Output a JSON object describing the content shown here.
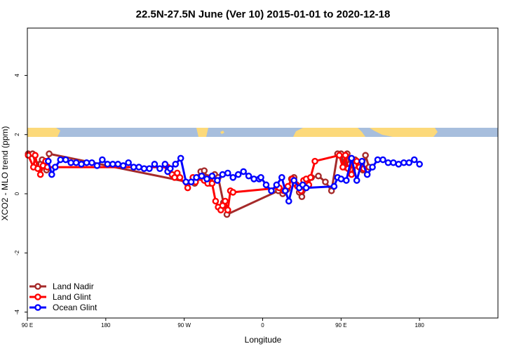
{
  "chart_data": {
    "type": "line",
    "title": "22.5N-27.5N June (Ver 10)   2015-01-01 to 2020-12-18",
    "xlabel": "Longitude",
    "ylabel": "XCO2 - MLO trend (ppm)",
    "xlim": [
      -90,
      180
    ],
    "ylim": [
      -4.2,
      5.6
    ],
    "x_ticks": [
      {
        "value": -90,
        "label": "90 E"
      },
      {
        "value": -45,
        "label": "180"
      },
      {
        "value": 0,
        "label": "90 W"
      },
      {
        "value": 45,
        "label": "0"
      },
      {
        "value": 90,
        "label": "90 E"
      },
      {
        "value": 135,
        "label": "180"
      }
    ],
    "y_ticks": [
      -4,
      -2,
      0,
      2,
      4
    ],
    "grid": false,
    "legend_position": "bottom-left",
    "colors": {
      "land_nadir": "#a52a2a",
      "land_glint": "#ff0000",
      "ocean_glint": "#0000ff",
      "map_land": "#fcd97a",
      "map_ocean": "#a7bedd"
    },
    "series": [
      {
        "name": "Land Nadir",
        "color": "#a52a2a",
        "x": [
          -89.5,
          -87.0,
          -85.0,
          -81.5,
          -79.0,
          -77.5,
          6.0,
          9.5,
          11.5,
          13.0,
          15.0,
          17.5,
          19.5,
          22.5,
          24.5,
          54.0,
          56.5,
          59.0,
          61.5,
          63.0,
          64.5,
          66.0,
          67.5,
          70.5,
          73.0,
          77.0,
          81.0,
          84.5,
          88.0,
          90.0,
          92.0,
          93.5,
          95.0,
          96.5,
          98.0,
          99.5,
          101.0,
          102.5,
          104.0,
          106.0
        ],
        "y": [
          1.35,
          1.35,
          1.0,
          1.15,
          0.8,
          1.35,
          0.35,
          0.75,
          0.78,
          0.55,
          0.35,
          0.65,
          0.55,
          -0.3,
          -0.7,
          0.1,
          0.0,
          0.15,
          0.5,
          0.55,
          0.3,
          0.05,
          -0.1,
          0.25,
          0.55,
          0.6,
          0.4,
          0.1,
          1.35,
          1.35,
          0.9,
          1.35,
          1.0,
          0.8,
          1.15,
          0.95,
          1.05,
          0.8,
          1.3,
          0.9
        ]
      },
      {
        "name": "Land Glint",
        "color": "#ff0000",
        "x": [
          -89.5,
          -86.5,
          -85.5,
          -84.0,
          -82.5,
          -81.0,
          -79.5,
          -78.5,
          -9.5,
          -8.5,
          -7.0,
          -5.5,
          -4.0,
          -2.5,
          2.0,
          5.0,
          6.5,
          8.0,
          9.5,
          11.5,
          13.5,
          15.0,
          16.0,
          18.0,
          19.5,
          21.0,
          22.0,
          23.5,
          25.0,
          26.5,
          28.0,
          54.5,
          57.0,
          59.5,
          62.0,
          63.5,
          65.0,
          67.0,
          68.5,
          70.0,
          71.5,
          72.5,
          75.0,
          89.0,
          91.0,
          92.5,
          94.0,
          96.0,
          97.5,
          99.0,
          100.5,
          103.0
        ],
        "y": [
          1.3,
          0.9,
          1.3,
          0.85,
          0.65,
          0.95,
          1.1,
          0.9,
          0.9,
          0.85,
          0.65,
          0.55,
          0.7,
          0.55,
          0.2,
          0.55,
          0.4,
          0.55,
          0.55,
          0.45,
          0.35,
          0.55,
          0.35,
          -0.25,
          -0.45,
          -0.55,
          -0.4,
          -0.25,
          -0.55,
          0.1,
          0.05,
          0.2,
          0.1,
          0.25,
          0.5,
          0.35,
          0.25,
          0.1,
          0.45,
          0.5,
          0.3,
          0.55,
          1.1,
          1.3,
          0.9,
          1.3,
          0.85,
          0.65,
          0.95,
          1.1,
          0.9,
          0.85
        ]
      },
      {
        "name": "Ocean Glint",
        "color": "#0000ff",
        "x": [
          -78.0,
          -76.0,
          -74.0,
          -71.0,
          -68.0,
          -65.0,
          -62.0,
          -59.0,
          -56.0,
          -53.0,
          -50.0,
          -47.0,
          -44.0,
          -41.0,
          -38.0,
          -35.0,
          -32.0,
          -29.0,
          -26.0,
          -23.0,
          -20.0,
          -17.0,
          -14.0,
          -11.0,
          -9.5,
          -8.0,
          -5.0,
          -2.0,
          1.0,
          4.0,
          7.0,
          10.0,
          13.0,
          16.0,
          19.0,
          22.0,
          25.0,
          28.0,
          31.0,
          34.0,
          37.0,
          40.0,
          43.0,
          44.0,
          47.0,
          50.0,
          53.0,
          56.0,
          58.0,
          60.0,
          63.0,
          66.0,
          68.0,
          70.0,
          86.0,
          88.0,
          90.0,
          93.0,
          96.0,
          99.0,
          102.0,
          105.0,
          108.0,
          111.0,
          114.0,
          117.0,
          120.0,
          123.0,
          126.0,
          129.0,
          132.0,
          135.0
        ],
        "y": [
          1.1,
          0.65,
          0.9,
          1.15,
          1.15,
          1.05,
          1.05,
          1.0,
          1.05,
          1.05,
          0.95,
          1.15,
          1.0,
          1.0,
          1.0,
          0.95,
          1.05,
          0.9,
          0.9,
          0.85,
          0.85,
          1.0,
          0.85,
          1.0,
          0.75,
          0.85,
          1.0,
          1.2,
          0.4,
          0.4,
          0.55,
          0.6,
          0.5,
          0.6,
          0.45,
          0.65,
          0.7,
          0.55,
          0.65,
          0.75,
          0.6,
          0.5,
          0.5,
          0.55,
          0.3,
          0.1,
          0.3,
          0.55,
          0.1,
          -0.25,
          0.45,
          0.2,
          0.3,
          0.2,
          0.25,
          0.55,
          0.5,
          0.45,
          1.2,
          0.45,
          1.1,
          0.65,
          0.9,
          1.15,
          1.15,
          1.05,
          1.05,
          1.0,
          1.05,
          1.05,
          1.15,
          1.0
        ]
      }
    ]
  }
}
